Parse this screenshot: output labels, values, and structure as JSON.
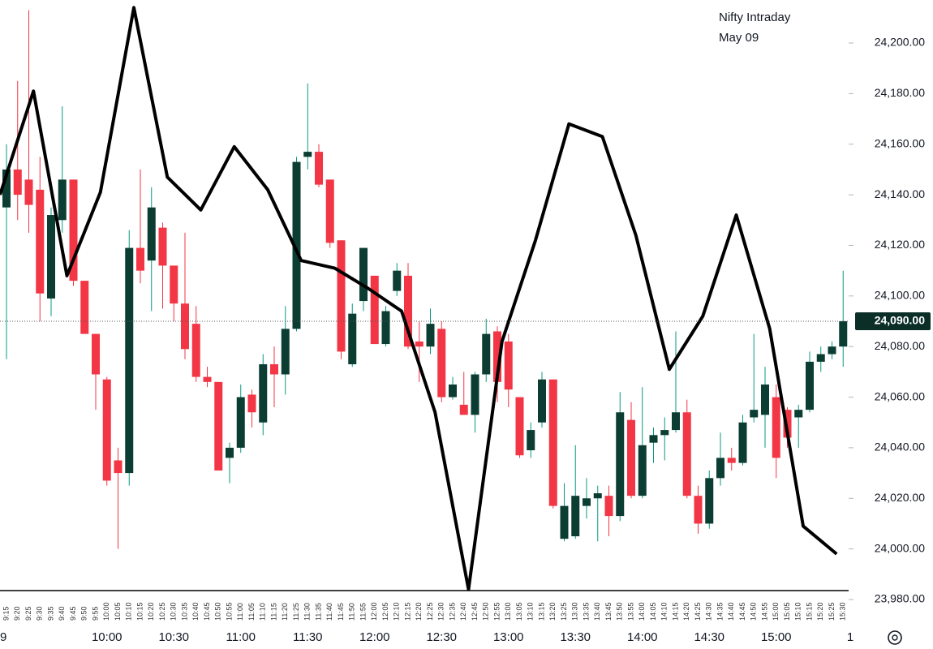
{
  "chart_data": {
    "type": "candlestick",
    "annotations": [
      "Nifty Intraday",
      "May 09"
    ],
    "categories": [
      "9:15",
      "9:20",
      "9:25",
      "9:30",
      "9:35",
      "9:40",
      "9:45",
      "9:50",
      "9:55",
      "10:00",
      "10:05",
      "10:10",
      "10:15",
      "10:20",
      "10:25",
      "10:30",
      "10:35",
      "10:40",
      "10:45",
      "10:50",
      "10:55",
      "11:00",
      "11:05",
      "11:10",
      "11:15",
      "11:20",
      "11:25",
      "11:30",
      "11:35",
      "11:40",
      "11:45",
      "11:50",
      "11:55",
      "12:00",
      "12:05",
      "12:10",
      "12:15",
      "12:20",
      "12:25",
      "12:30",
      "12:35",
      "12:40",
      "12:45",
      "12:50",
      "12:55",
      "13:00",
      "13:05",
      "13:10",
      "13:15",
      "13:20",
      "13:25",
      "13:30",
      "13:35",
      "13:40",
      "13:45",
      "13:50",
      "13:55",
      "14:00",
      "14:05",
      "14:10",
      "14:15",
      "14:20",
      "14:25",
      "14:30",
      "14:35",
      "14:40",
      "14:45",
      "14:50",
      "14:55",
      "15:00",
      "15:05",
      "15:10",
      "15:15",
      "15:20",
      "15:25",
      "15:30"
    ],
    "open": [
      24135,
      24150,
      24146,
      24142,
      24099,
      24130,
      24146,
      24106,
      24085,
      24067,
      24035,
      24030,
      24119,
      24114,
      24127,
      24112,
      24097,
      24089,
      24068,
      24066,
      24036,
      24040,
      24061,
      24050,
      24073,
      24069,
      24087,
      24155,
      24157,
      24146,
      24122,
      24073,
      24098,
      24108,
      24081,
      24102,
      24108,
      24082,
      24080,
      24087,
      24060,
      24057,
      24053,
      24069,
      24086,
      24082,
      24060,
      24039,
      24050,
      24067,
      24004,
      24005,
      24017,
      24020,
      24021,
      24013,
      24051,
      24021,
      24042,
      24045,
      24047,
      24054,
      24021,
      24010,
      24028,
      24036,
      24034,
      24052,
      24053,
      24060,
      24055,
      24052,
      24055,
      24074,
      24077,
      24080
    ],
    "high": [
      24160,
      24185,
      24213,
      24155,
      24135,
      24175,
      24146,
      24106,
      24085,
      24068,
      24040,
      24126,
      24150,
      24143,
      24129,
      24112,
      24125,
      24096,
      24072,
      24066,
      24042,
      24065,
      24063,
      24077,
      24080,
      24096,
      24155,
      24184,
      24160,
      24146,
      24122,
      24097,
      24119,
      24108,
      24096,
      24113,
      24113,
      24090,
      24095,
      24090,
      24068,
      24070,
      24070,
      24091,
      24088,
      24085,
      24060,
      24050,
      24070,
      24067,
      24026,
      24041,
      24028,
      24025,
      24025,
      24062,
      24058,
      24064,
      24048,
      24052,
      24086,
      24059,
      24025,
      24031,
      24046,
      24040,
      24053,
      24085,
      24072,
      24065,
      24056,
      24057,
      24078,
      24080,
      24082,
      24110
    ],
    "low": [
      24075,
      24130,
      24125,
      24090,
      24092,
      24125,
      24104,
      24085,
      24055,
      24025,
      24000,
      24025,
      24105,
      24094,
      24095,
      24090,
      24075,
      24066,
      24064,
      24031,
      24026,
      24038,
      24048,
      24045,
      24056,
      24061,
      24086,
      24150,
      24143,
      24119,
      24075,
      24072,
      24094,
      24081,
      24080,
      24100,
      24079,
      24066,
      24077,
      24058,
      24059,
      24053,
      24046,
      24066,
      24058,
      24056,
      24036,
      24036,
      24048,
      24016,
      24003,
      24004,
      24012,
      24003,
      24005,
      24011,
      24020,
      24020,
      24034,
      24035,
      24046,
      24020,
      24006,
      24008,
      24025,
      24031,
      24033,
      24050,
      24040,
      24028,
      24040,
      24040,
      24054,
      24070,
      24075,
      24072
    ],
    "close": [
      24150,
      24140,
      24136,
      24101,
      24132,
      24146,
      24106,
      24085,
      24069,
      24027,
      24030,
      24119,
      24110,
      24135,
      24112,
      24097,
      24079,
      24068,
      24066,
      24031,
      24040,
      24060,
      24054,
      24073,
      24069,
      24087,
      24153,
      24157,
      24144,
      24121,
      24078,
      24093,
      24119,
      24081,
      24094,
      24110,
      24080,
      24080,
      24089,
      24060,
      24065,
      24053,
      24069,
      24085,
      24066,
      24063,
      24037,
      24047,
      24067,
      24017,
      24017,
      24021,
      24020,
      24022,
      24013,
      24054,
      24021,
      24041,
      24045,
      24047,
      24054,
      24021,
      24010,
      24028,
      24036,
      24034,
      24050,
      24055,
      24065,
      24036,
      24044,
      24055,
      24074,
      24077,
      24080,
      24090
    ],
    "up_color": "#0b3d33",
    "up_wick": "#089981",
    "down_color": "#f23645",
    "line": {
      "color": "#000000",
      "x": [
        "9:15",
        "9:30",
        "9:45",
        "10:00",
        "10:15",
        "10:30",
        "10:45",
        "11:00",
        "11:15",
        "11:30",
        "11:45",
        "12:00",
        "12:15",
        "12:30",
        "12:45",
        "13:00",
        "13:15",
        "13:30",
        "13:45",
        "14:00",
        "14:15",
        "14:30",
        "14:45",
        "15:00",
        "15:15",
        "15:30"
      ],
      "values": [
        24140,
        24181,
        24108,
        24141,
        24214,
        24147,
        24134,
        24159,
        24142,
        24114,
        24111,
        24103,
        24094,
        24054,
        23984,
        24082,
        24122,
        24168,
        24163,
        24124,
        24071,
        24092,
        24132,
        24087,
        24009,
        23998
      ]
    },
    "time_labels": [
      "10:00",
      "10:30",
      "11:00",
      "11:30",
      "12:00",
      "12:30",
      "13:00",
      "13:30",
      "14:00",
      "14:30",
      "15:00"
    ],
    "edge_labels": [
      "9",
      "1"
    ],
    "ylim": [
      23980,
      24217
    ],
    "yticks": [
      {
        "value": 23980,
        "label": "23,980.00"
      },
      {
        "value": 24000,
        "label": "24,000.00"
      },
      {
        "value": 24020,
        "label": "24,020.00"
      },
      {
        "value": 24040,
        "label": "24,040.00"
      },
      {
        "value": 24060,
        "label": "24,060.00"
      },
      {
        "value": 24080,
        "label": "24,080.00"
      },
      {
        "value": 24100,
        "label": "24,100.00"
      },
      {
        "value": 24120,
        "label": "24,120.00"
      },
      {
        "value": 24140,
        "label": "24,140.00"
      },
      {
        "value": 24160,
        "label": "24,160.00"
      },
      {
        "value": 24180,
        "label": "24,180.00"
      },
      {
        "value": 24200,
        "label": "24,200.00"
      }
    ],
    "last_price": {
      "value": 24090,
      "label": "24,090.00"
    }
  }
}
